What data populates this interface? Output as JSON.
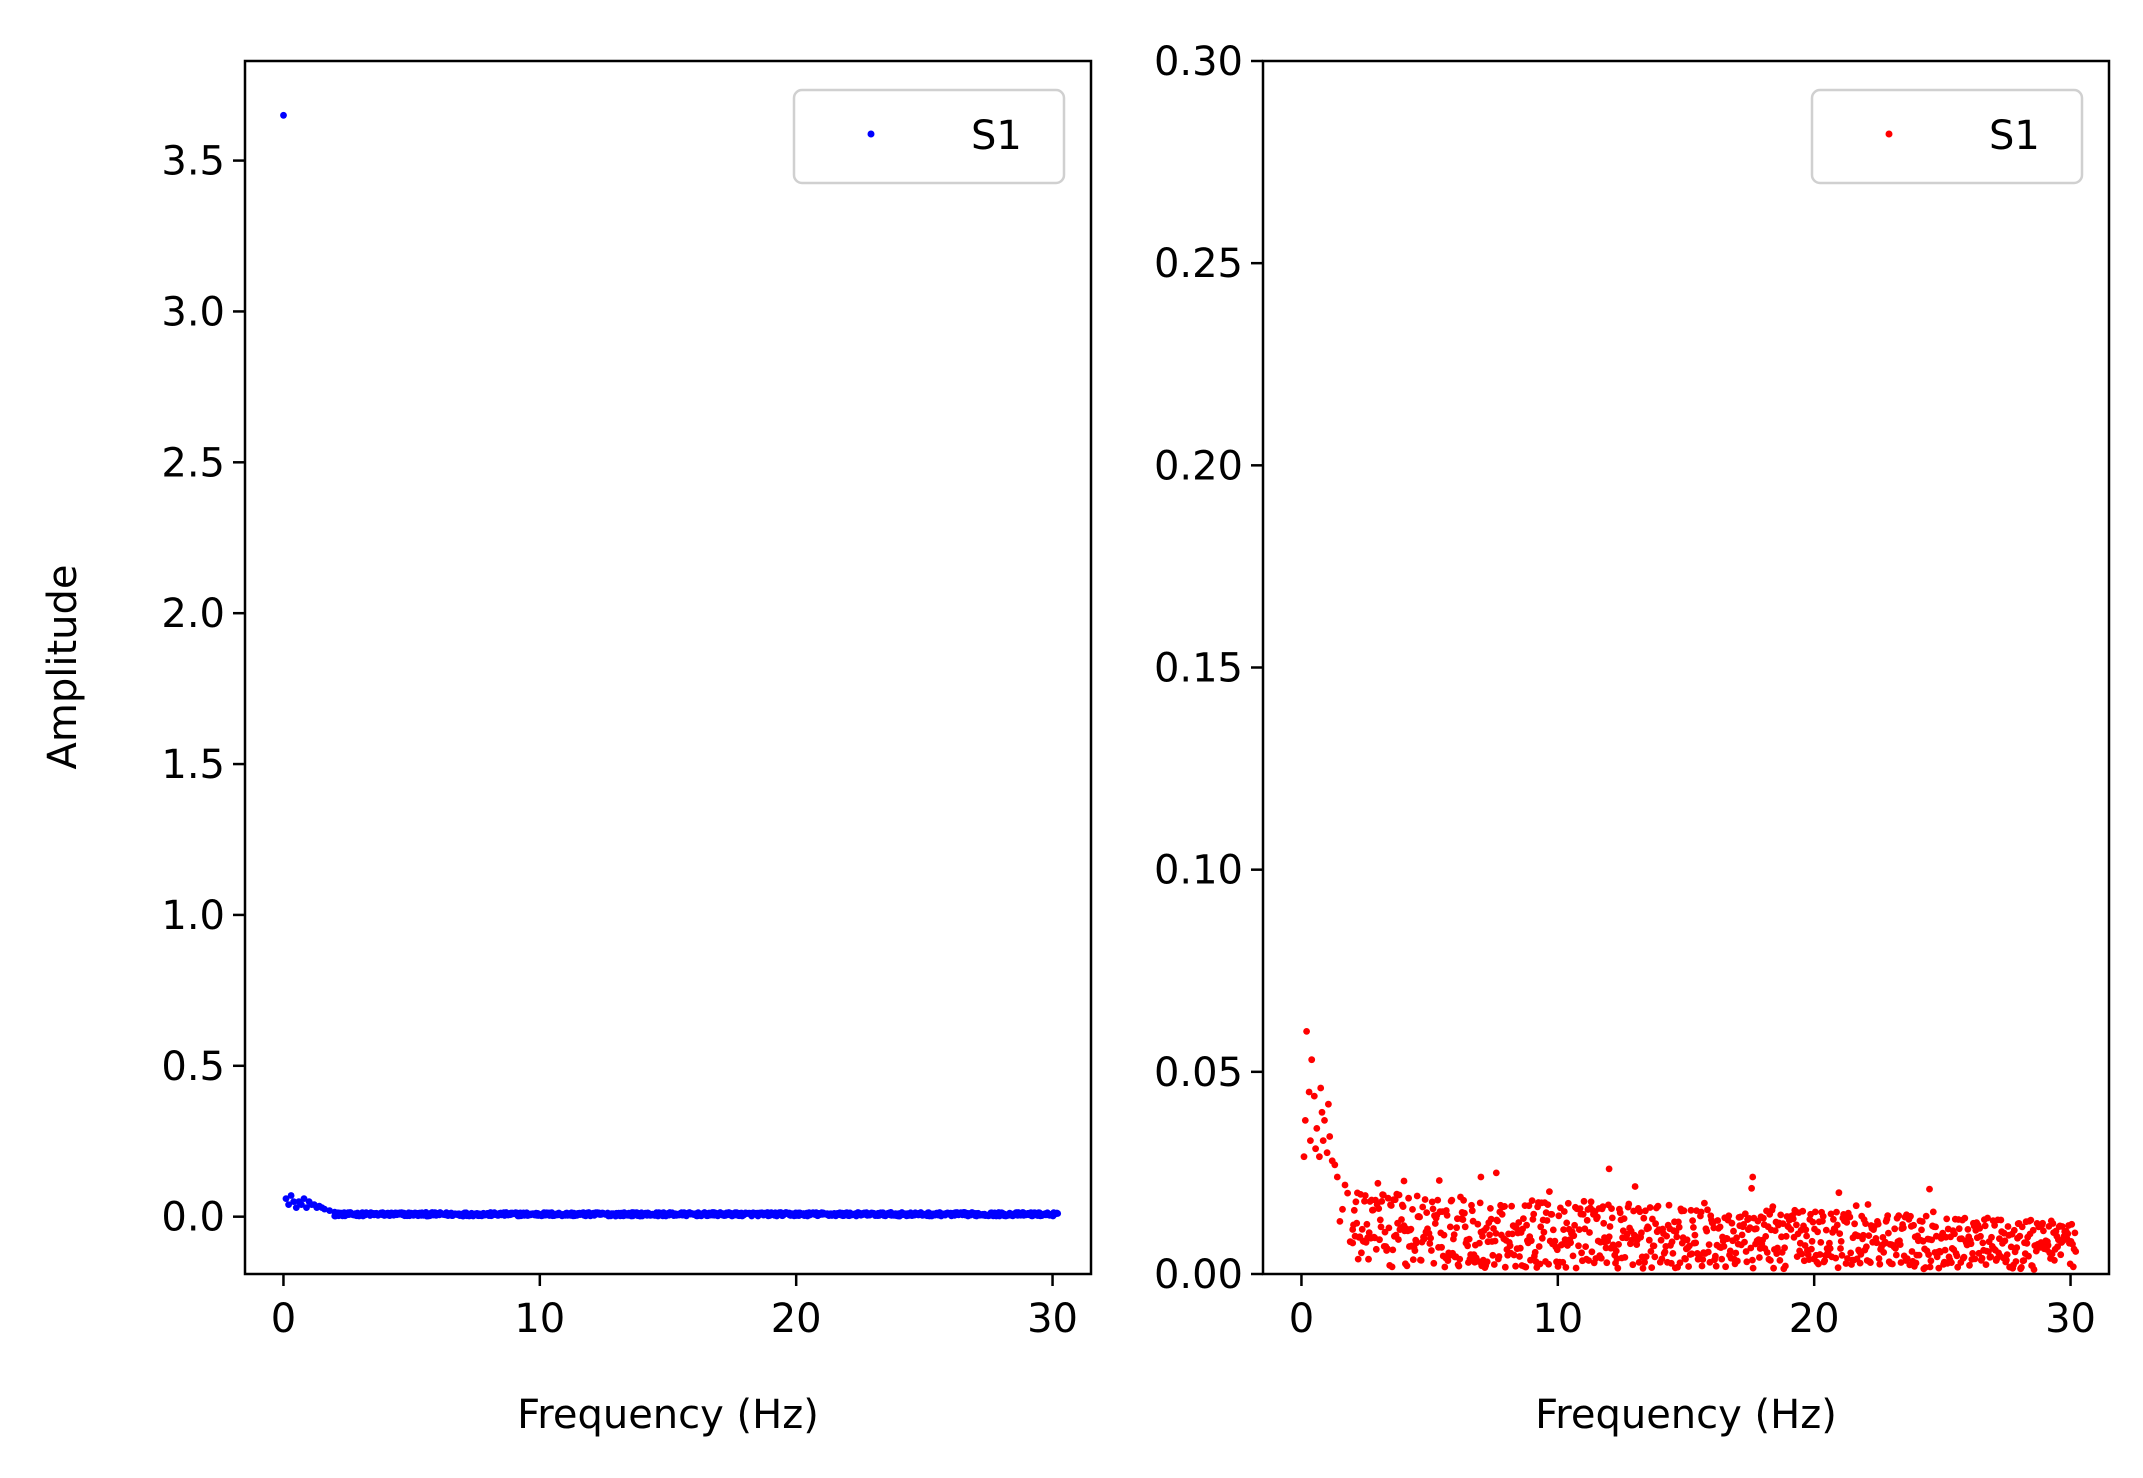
{
  "chart_data": [
    {
      "type": "scatter",
      "xlabel": "Frequency (Hz)",
      "ylabel": "Amplitude",
      "xlim": [
        -1.5,
        31.5
      ],
      "ylim": [
        -0.19,
        3.83
      ],
      "xticks": [
        0,
        10,
        20,
        30
      ],
      "xtick_labels": [
        "0",
        "10",
        "20",
        "30"
      ],
      "yticks": [
        0.0,
        0.5,
        1.0,
        1.5,
        2.0,
        2.5,
        3.0,
        3.5
      ],
      "ytick_labels": [
        "0.0",
        "0.5",
        "1.0",
        "1.5",
        "2.0",
        "2.5",
        "3.0",
        "3.5"
      ],
      "grid": false,
      "legend_position": "top-right",
      "series": [
        {
          "name": "S1",
          "color": "#0000ff",
          "marker": "point",
          "points_note_omitted": null,
          "x_range": [
            0,
            30.2
          ],
          "points": [
            [
              0.0,
              3.65
            ],
            [
              0.1,
              0.06
            ],
            [
              0.2,
              0.04
            ],
            [
              0.3,
              0.07
            ],
            [
              0.4,
              0.05
            ],
            [
              0.5,
              0.03
            ],
            [
              0.6,
              0.05
            ],
            [
              0.7,
              0.04
            ],
            [
              0.8,
              0.06
            ],
            [
              0.9,
              0.03
            ],
            [
              1.0,
              0.05
            ],
            [
              1.1,
              0.04
            ],
            [
              1.2,
              0.04
            ],
            [
              1.3,
              0.03
            ],
            [
              1.4,
              0.035
            ],
            [
              1.5,
              0.03
            ],
            [
              1.6,
              0.025
            ],
            [
              1.8,
              0.02
            ],
            [
              2.0,
              0.015
            ],
            [
              2.2,
              0.012
            ]
          ],
          "tail_level": 0.008
        }
      ]
    },
    {
      "type": "scatter",
      "xlabel": "Frequency (Hz)",
      "ylabel": "",
      "xlim": [
        -1.5,
        31.5
      ],
      "ylim": [
        0.0,
        0.3
      ],
      "xticks": [
        0,
        10,
        20,
        30
      ],
      "xtick_labels": [
        "0",
        "10",
        "20",
        "30"
      ],
      "yticks": [
        0.0,
        0.05,
        0.1,
        0.15,
        0.2,
        0.25,
        0.3
      ],
      "ytick_labels": [
        "0.00",
        "0.05",
        "0.10",
        "0.15",
        "0.20",
        "0.25",
        "0.30"
      ],
      "grid": false,
      "legend_position": "top-right",
      "series": [
        {
          "name": "S1",
          "color": "#ff0000",
          "marker": "point",
          "x_range": [
            0,
            30.2
          ],
          "points": [
            [
              0.1,
              0.029
            ],
            [
              0.15,
              0.038
            ],
            [
              0.2,
              0.06
            ],
            [
              0.3,
              0.045
            ],
            [
              0.35,
              0.033
            ],
            [
              0.4,
              0.053
            ],
            [
              0.5,
              0.044
            ],
            [
              0.55,
              0.031
            ],
            [
              0.6,
              0.036
            ],
            [
              0.7,
              0.029
            ],
            [
              0.75,
              0.046
            ],
            [
              0.8,
              0.04
            ],
            [
              0.85,
              0.033
            ],
            [
              0.9,
              0.038
            ],
            [
              1.0,
              0.03
            ],
            [
              1.05,
              0.042
            ],
            [
              1.1,
              0.034
            ],
            [
              1.2,
              0.028
            ],
            [
              1.3,
              0.027
            ],
            [
              1.4,
              0.024
            ],
            [
              1.5,
              0.013
            ],
            [
              1.6,
              0.016
            ],
            [
              1.7,
              0.022
            ],
            [
              1.8,
              0.02
            ],
            [
              1.9,
              0.008
            ],
            [
              2.0,
              0.011
            ],
            [
              12.0,
              0.026
            ],
            [
              17.6,
              0.024
            ],
            [
              24.5,
              0.021
            ],
            [
              7.6,
              0.025
            ],
            [
              7.0,
              0.024
            ],
            [
              4.0,
              0.023
            ]
          ],
          "tail_level": 0.008
        }
      ]
    }
  ]
}
